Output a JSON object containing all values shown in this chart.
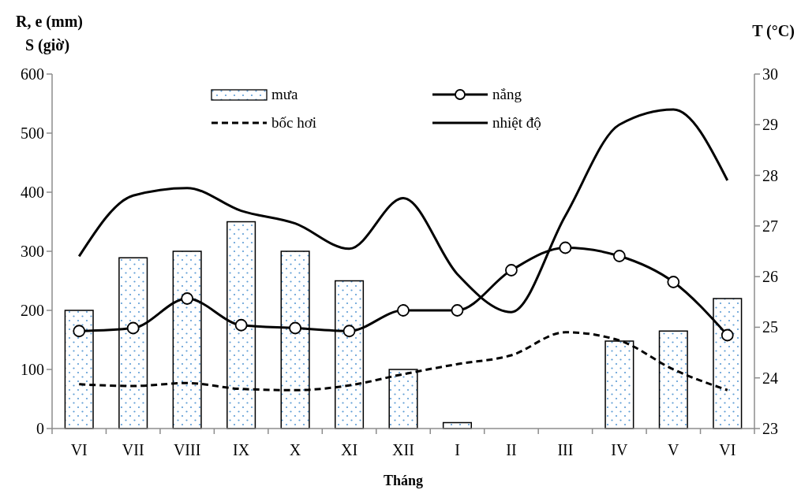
{
  "chart_data": {
    "type": "bar",
    "xlabel": "Tháng",
    "ylabel": "R, e (mm)\nS (giờ)",
    "y2label": "T (°C)",
    "categories": [
      "VI",
      "VII",
      "VIII",
      "IX",
      "X",
      "XI",
      "XII",
      "I",
      "II",
      "III",
      "IV",
      "V",
      "VI"
    ],
    "series": [
      {
        "name": "mưa",
        "color": "#000000",
        "values": [
          200,
          289,
          300,
          350,
          300,
          250,
          100,
          10,
          0,
          0,
          148,
          165,
          220
        ]
      },
      {
        "name": "nắng",
        "type": "line",
        "color": "#000000",
        "marker": "circle",
        "line_style": "solid",
        "values": [
          165,
          170,
          220,
          175,
          170,
          165,
          200,
          200,
          268,
          306,
          292,
          248,
          158
        ]
      },
      {
        "name": "bốc hơi",
        "type": "line",
        "color": "#000000",
        "marker": "none",
        "line_style": "dashed",
        "values": [
          75,
          72,
          77,
          67,
          65,
          73,
          92,
          109,
          124,
          163,
          149,
          100,
          65
        ]
      },
      {
        "name": "nhiệt độ",
        "type": "line",
        "axis": "y2",
        "color": "#000000",
        "marker": "none",
        "line_style": "solid",
        "values": [
          26.4,
          27.6,
          27.75,
          27.3,
          27.05,
          26.55,
          27.55,
          26.05,
          25.3,
          27.2,
          29.0,
          29.3,
          27.9
        ]
      }
    ],
    "ylim": [
      0,
      600
    ],
    "yticks": [
      0,
      100,
      200,
      300,
      400,
      500,
      600
    ],
    "y2lim": [
      23,
      30
    ],
    "y2ticks": [
      23,
      24,
      25,
      26,
      27,
      28,
      29,
      30
    ],
    "grid": false,
    "legend": "top"
  }
}
